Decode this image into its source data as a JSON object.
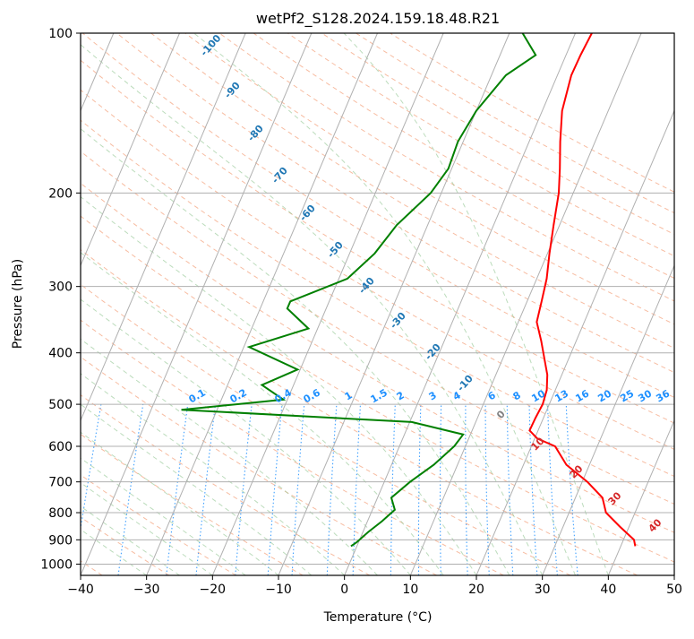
{
  "chart_data": {
    "type": "line",
    "title": "wetPf2_S128.2024.159.18.48.R21",
    "xlabel": "Temperature (°C)",
    "ylabel": "Pressure (hPa)",
    "xlim": [
      -40,
      50
    ],
    "ylim": [
      1050,
      100
    ],
    "y_scale": "log",
    "grid": true,
    "x_ticks": [
      -40,
      -30,
      -20,
      -10,
      0,
      10,
      20,
      30,
      40,
      50
    ],
    "y_ticks": [
      100,
      200,
      300,
      400,
      500,
      600,
      700,
      800,
      900,
      1000
    ],
    "skew_isotherms": true,
    "series": [
      {
        "color": "#ff0000",
        "points": [
          [
            2.5,
            100
          ],
          [
            2.2,
            110
          ],
          [
            2.1,
            120
          ],
          [
            3.0,
            140
          ],
          [
            4.7,
            160
          ],
          [
            6.4,
            180
          ],
          [
            7.8,
            200
          ],
          [
            9.1,
            230
          ],
          [
            10.3,
            260
          ],
          [
            11.5,
            290
          ],
          [
            12.2,
            320
          ],
          [
            12.8,
            350
          ],
          [
            14.7,
            380
          ],
          [
            16.3,
            410
          ],
          [
            17.8,
            440
          ],
          [
            18.7,
            470
          ],
          [
            19.0,
            500
          ],
          [
            18.8,
            530
          ],
          [
            18.7,
            560
          ],
          [
            20.4,
            580
          ],
          [
            23.6,
            600
          ],
          [
            26.5,
            650
          ],
          [
            30.8,
            700
          ],
          [
            34.1,
            750
          ],
          [
            35.6,
            800
          ],
          [
            38.6,
            850
          ],
          [
            41.6,
            900
          ],
          [
            42.2,
            925
          ]
        ]
      },
      {
        "color": "#008000",
        "points": [
          [
            -8.0,
            100
          ],
          [
            -4.6,
            110
          ],
          [
            -7.8,
            120
          ],
          [
            -10.0,
            140
          ],
          [
            -10.8,
            160
          ],
          [
            -10.5,
            180
          ],
          [
            -11.6,
            200
          ],
          [
            -14.7,
            230
          ],
          [
            -16.2,
            260
          ],
          [
            -18.7,
            290
          ],
          [
            -25.9,
            320
          ],
          [
            -25.9,
            330
          ],
          [
            -21.4,
            360
          ],
          [
            -29.2,
            390
          ],
          [
            -20.4,
            430
          ],
          [
            -24.8,
            460
          ],
          [
            -20.6,
            490
          ],
          [
            -35.4,
            512
          ],
          [
            0.3,
            540
          ],
          [
            8.9,
            570
          ],
          [
            8.3,
            600
          ],
          [
            6.4,
            650
          ],
          [
            3.9,
            700
          ],
          [
            2.1,
            750
          ],
          [
            3.4,
            790
          ],
          [
            2.2,
            830
          ],
          [
            0.8,
            870
          ],
          [
            -0.3,
            910
          ],
          [
            -0.9,
            925
          ]
        ]
      }
    ],
    "mixing_ratio_labels": [
      "0.1",
      "0.2",
      "0.4",
      "0.6",
      "1",
      "1.5",
      "2",
      "3",
      "4",
      "6",
      "8",
      "10",
      "13",
      "16",
      "20",
      "25",
      "30",
      "36"
    ],
    "mixing_ratio_values": [
      0.1,
      0.2,
      0.4,
      0.6,
      1,
      1.5,
      2,
      3,
      4,
      6,
      8,
      10,
      13,
      16,
      20,
      25,
      30,
      36
    ],
    "dry_adiabat_labels": [
      "-100",
      "-90",
      "-80",
      "-70",
      "-60",
      "-50",
      "-40",
      "-30",
      "-20",
      "-10",
      "0"
    ],
    "moist_adiabat_labels": [
      "10",
      "20",
      "30",
      "40"
    ],
    "line_colors": {
      "isotherm": "#b0b0b0",
      "isobar": "#b0b0b0",
      "dry_adiabat": "#f4a582",
      "moist_adiabat": "#8fc48f",
      "mixing_ratio": "#1e90ff",
      "tan_curve": "#c8a878"
    }
  }
}
